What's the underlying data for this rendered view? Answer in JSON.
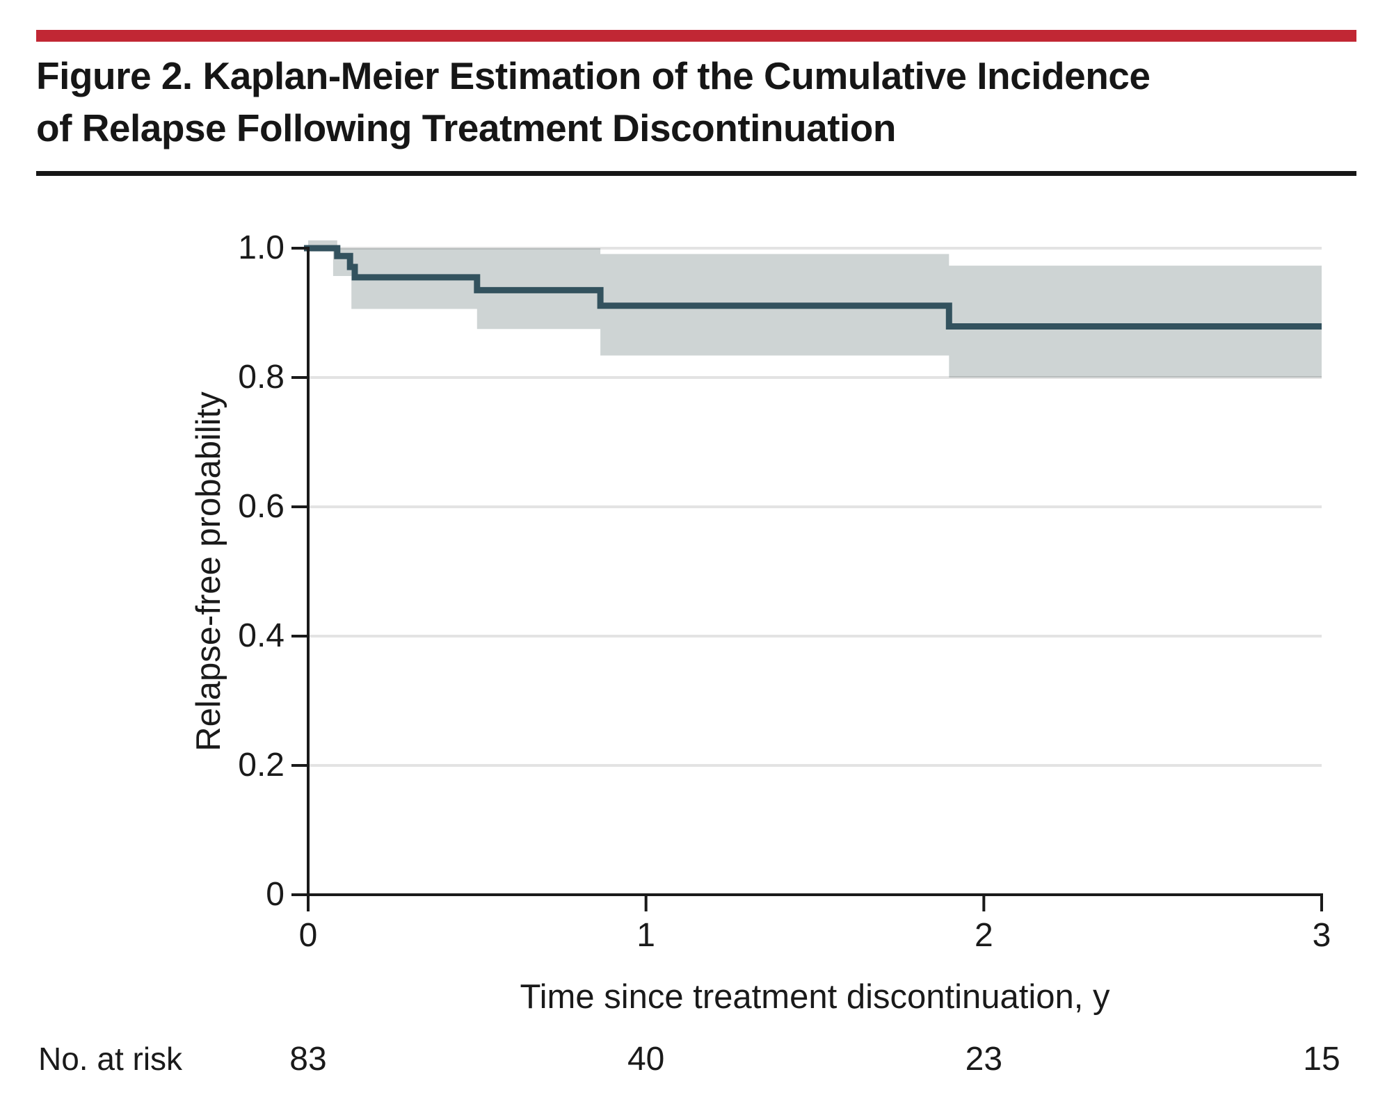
{
  "figure": {
    "title_line1": "Figure 2. Kaplan-Meier Estimation of the Cumulative Incidence",
    "title_line2": "of Relapse Following Treatment Discontinuation",
    "accent_bar_color": "#c12734",
    "rule_color": "#161616"
  },
  "chart_data": {
    "type": "line",
    "subtype": "kaplan_meier_step",
    "title": "",
    "xlabel": "Time since treatment discontinuation, y",
    "ylabel": "Relapse-free probability",
    "xlim": [
      0,
      3
    ],
    "ylim": [
      0,
      1.0
    ],
    "x_ticks": [
      0,
      1,
      2,
      3
    ],
    "x_tick_labels": [
      "0",
      "1",
      "2",
      "3"
    ],
    "y_ticks": [
      0,
      0.2,
      0.4,
      0.6,
      0.8,
      1.0
    ],
    "y_tick_labels": [
      "0",
      "0.2",
      "0.4",
      "0.6",
      "0.8",
      "1.0"
    ],
    "grid": "horizontal",
    "legend_position": "none",
    "line_color": "#33525e",
    "ci_band_color": "#ced4d4",
    "gridline_color": "#e3e3e3",
    "axis_color": "#1a1a1a",
    "series": [
      {
        "name": "Relapse-free probability",
        "points": [
          [
            0,
            1.0
          ],
          [
            0.086,
            0.988
          ],
          [
            0.124,
            0.971
          ],
          [
            0.138,
            0.955
          ],
          [
            0.5,
            0.935
          ],
          [
            0.865,
            0.911
          ],
          [
            1.897,
            0.879
          ]
        ],
        "end_x": 3.0,
        "final_value": 0.88
      }
    ],
    "ci_band": {
      "upper": [
        [
          0,
          1.012
        ],
        [
          0.086,
          1.0
        ],
        [
          0.865,
          0.991
        ],
        [
          1.897,
          0.973
        ]
      ],
      "lower": [
        [
          0,
          1.0
        ],
        [
          0.074,
          0.957
        ],
        [
          0.128,
          0.906
        ],
        [
          0.5,
          0.875
        ],
        [
          0.865,
          0.834
        ],
        [
          1.897,
          0.8
        ]
      ],
      "end_x": 3.0
    },
    "at_risk": {
      "label": "No. at risk",
      "times": [
        0,
        1,
        2,
        3
      ],
      "counts": [
        "83",
        "40",
        "23",
        "15"
      ]
    }
  }
}
